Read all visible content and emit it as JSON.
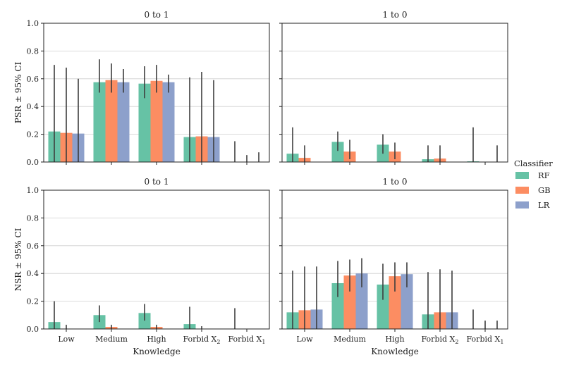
{
  "chart_data": {
    "type": "bar",
    "categories": [
      "Low",
      "Medium",
      "High",
      "Forbid X2",
      "Forbid X1"
    ],
    "category_labels": [
      {
        "main": "Low",
        "sub": ""
      },
      {
        "main": "Medium",
        "sub": ""
      },
      {
        "main": "High",
        "sub": ""
      },
      {
        "main": "Forbid X",
        "sub": "2"
      },
      {
        "main": "Forbid X",
        "sub": "1"
      }
    ],
    "xlabel": "Knowledge",
    "ylim": [
      0,
      1.0
    ],
    "yticks": [
      "0.0",
      "0.2",
      "0.4",
      "0.6",
      "0.8",
      "1.0"
    ],
    "grid": true,
    "legend": {
      "title": "Classifier",
      "placement": "center-right outside",
      "entries": [
        {
          "name": "RF",
          "color": "#66c2a5"
        },
        {
          "name": "GB",
          "color": "#fc8d62"
        },
        {
          "name": "LR",
          "color": "#8da0cb"
        }
      ]
    },
    "panels": [
      {
        "title": "0 to 1",
        "ylabel": "PSR ± 95% CI",
        "series": [
          {
            "name": "RF",
            "values": [
              0.22,
              0.575,
              0.565,
              0.18,
              0.0
            ],
            "ci": [
              [
                0.0,
                0.7
              ],
              [
                0.5,
                0.74
              ],
              [
                0.46,
                0.69
              ],
              [
                0.0,
                0.61
              ],
              [
                0.0,
                0.15
              ]
            ]
          },
          {
            "name": "GB",
            "values": [
              0.21,
              0.59,
              0.585,
              0.185,
              0.0
            ],
            "ci": [
              [
                0.0,
                0.68
              ],
              [
                0.5,
                0.71
              ],
              [
                0.5,
                0.7
              ],
              [
                0.0,
                0.65
              ],
              [
                0.0,
                0.05
              ]
            ]
          },
          {
            "name": "LR",
            "values": [
              0.205,
              0.575,
              0.575,
              0.18,
              0.0
            ],
            "ci": [
              [
                0.0,
                0.6
              ],
              [
                0.5,
                0.67
              ],
              [
                0.5,
                0.63
              ],
              [
                0.0,
                0.59
              ],
              [
                0.0,
                0.07
              ]
            ]
          }
        ]
      },
      {
        "title": "1 to 0",
        "ylabel": "",
        "series": [
          {
            "name": "RF",
            "values": [
              0.06,
              0.145,
              0.125,
              0.02,
              0.005
            ],
            "ci": [
              [
                0.0,
                0.25
              ],
              [
                0.08,
                0.22
              ],
              [
                0.06,
                0.2
              ],
              [
                0.0,
                0.12
              ],
              [
                0.0,
                0.25
              ]
            ]
          },
          {
            "name": "GB",
            "values": [
              0.03,
              0.075,
              0.075,
              0.025,
              0.0
            ],
            "ci": [
              [
                0.0,
                0.12
              ],
              [
                0.02,
                0.16
              ],
              [
                0.02,
                0.14
              ],
              [
                0.0,
                0.12
              ],
              [
                0.0,
                0.0
              ]
            ]
          },
          {
            "name": "LR",
            "values": [
              0.0,
              0.0,
              0.0,
              0.0,
              0.0
            ],
            "ci": [
              [
                0.0,
                0.0
              ],
              [
                0.0,
                0.0
              ],
              [
                0.0,
                0.0
              ],
              [
                0.0,
                0.0
              ],
              [
                0.0,
                0.12
              ]
            ]
          }
        ]
      },
      {
        "title": "0 to 1",
        "ylabel": "NSR ± 95% CI",
        "series": [
          {
            "name": "RF",
            "values": [
              0.05,
              0.1,
              0.115,
              0.035,
              0.0
            ],
            "ci": [
              [
                0.0,
                0.2
              ],
              [
                0.05,
                0.17
              ],
              [
                0.06,
                0.18
              ],
              [
                0.0,
                0.16
              ],
              [
                0.0,
                0.15
              ]
            ]
          },
          {
            "name": "GB",
            "values": [
              0.0,
              0.015,
              0.015,
              0.0,
              0.0
            ],
            "ci": [
              [
                0.0,
                0.03
              ],
              [
                0.0,
                0.03
              ],
              [
                0.0,
                0.03
              ],
              [
                0.0,
                0.02
              ],
              [
                0.0,
                0.0
              ]
            ]
          },
          {
            "name": "LR",
            "values": [
              0.0,
              0.0,
              0.0,
              0.0,
              0.0
            ],
            "ci": [
              [
                0.0,
                0.0
              ],
              [
                0.0,
                0.0
              ],
              [
                0.0,
                0.0
              ],
              [
                0.0,
                0.0
              ],
              [
                0.0,
                0.0
              ]
            ]
          }
        ]
      },
      {
        "title": "1 to 0",
        "ylabel": "",
        "series": [
          {
            "name": "RF",
            "values": [
              0.12,
              0.33,
              0.32,
              0.105,
              0.0
            ],
            "ci": [
              [
                0.0,
                0.42
              ],
              [
                0.23,
                0.49
              ],
              [
                0.21,
                0.47
              ],
              [
                0.0,
                0.41
              ],
              [
                0.0,
                0.14
              ]
            ]
          },
          {
            "name": "GB",
            "values": [
              0.135,
              0.385,
              0.38,
              0.12,
              0.0
            ],
            "ci": [
              [
                0.0,
                0.45
              ],
              [
                0.27,
                0.5
              ],
              [
                0.27,
                0.48
              ],
              [
                0.0,
                0.43
              ],
              [
                0.0,
                0.06
              ]
            ]
          },
          {
            "name": "LR",
            "values": [
              0.14,
              0.4,
              0.395,
              0.12,
              0.0
            ],
            "ci": [
              [
                0.0,
                0.45
              ],
              [
                0.3,
                0.51
              ],
              [
                0.3,
                0.48
              ],
              [
                0.0,
                0.42
              ],
              [
                0.0,
                0.06
              ]
            ]
          }
        ]
      }
    ]
  }
}
